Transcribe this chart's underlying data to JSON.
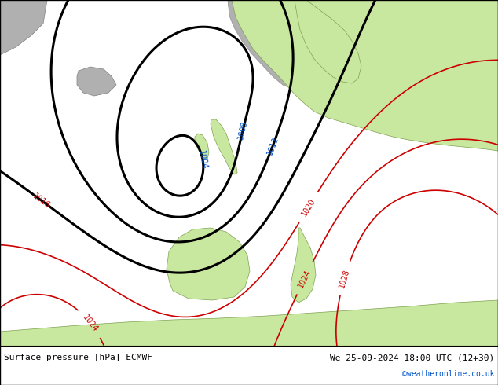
{
  "title_left": "Surface pressure [hPa] ECMWF",
  "title_right": "We 25-09-2024 18:00 UTC (12+30)",
  "copyright": "©weatheronline.co.uk",
  "sea_color": "#cce8f8",
  "land_color": "#c8e8a0",
  "gray_color": "#b0b0b0",
  "fig_width": 6.34,
  "fig_height": 4.9,
  "dpi": 100,
  "text_color_black": "#000000",
  "text_color_blue": "#0055cc",
  "text_color_red": "#cc0000"
}
